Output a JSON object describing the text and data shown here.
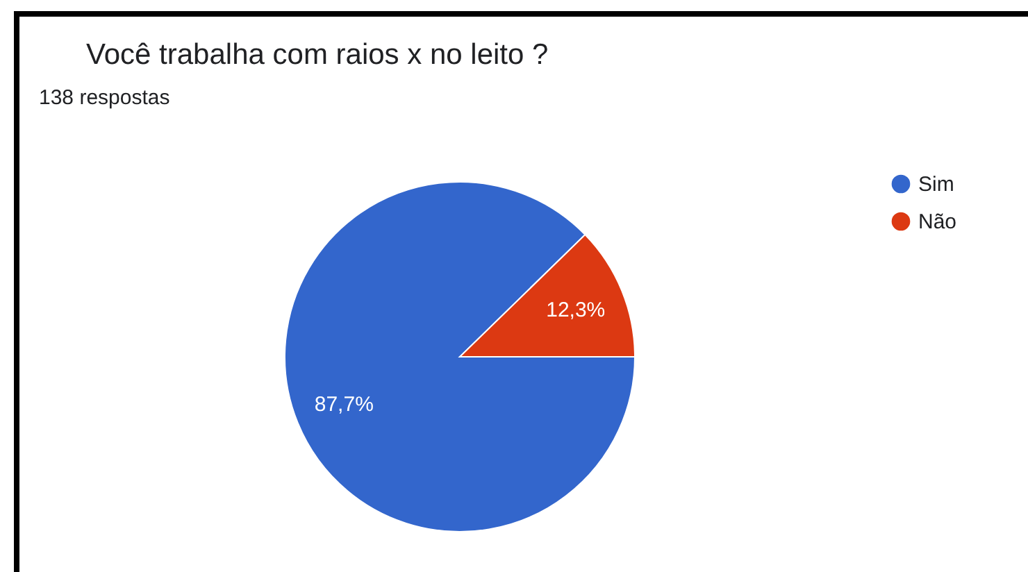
{
  "chart_data": {
    "type": "pie",
    "title": "Você trabalha com raios x no leito ?",
    "subtitle": "138 respostas",
    "categories": [
      "Sim",
      "Não"
    ],
    "values": [
      87.7,
      12.3
    ],
    "colors": [
      "#3366cc",
      "#dc3912"
    ],
    "value_labels": [
      "87,7%",
      "12,3%"
    ],
    "legend": "top right"
  }
}
